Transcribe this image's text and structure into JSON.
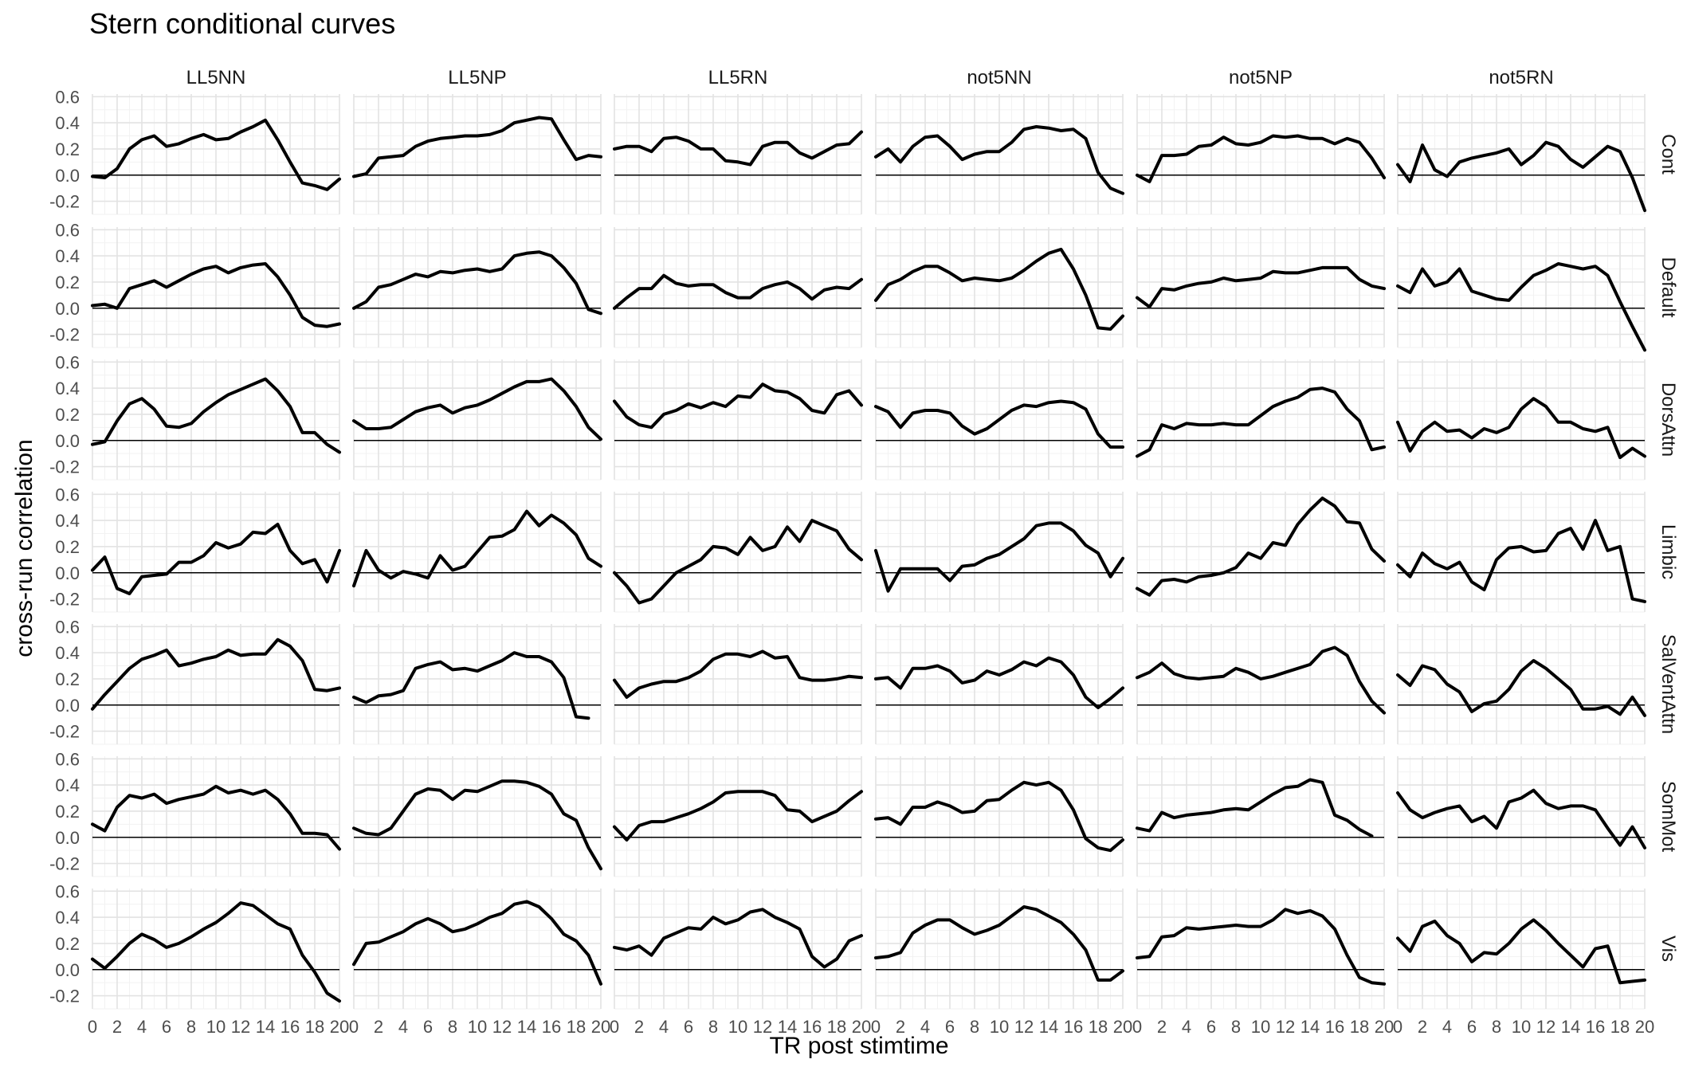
{
  "chart_data": {
    "type": "line",
    "title": "Stern conditional curves",
    "xlabel": "TR post stimtime",
    "ylabel": "cross-run correlation",
    "xlim": [
      0,
      20
    ],
    "ylim": [
      -0.3,
      0.62
    ],
    "x_ticks": [
      0,
      2,
      4,
      6,
      8,
      10,
      12,
      14,
      16,
      18,
      20
    ],
    "x_tick_labels": [
      "0",
      "2",
      "4",
      "6",
      "8",
      "10",
      "12",
      "14",
      "16",
      "18",
      "20"
    ],
    "y_ticks": [
      -0.2,
      0.0,
      0.2,
      0.4,
      0.6
    ],
    "y_tick_labels": [
      "-0.2",
      "0.0",
      "0.2",
      "0.4",
      "0.6"
    ],
    "grid": true,
    "reference_line_y": 0,
    "x": [
      0,
      1,
      2,
      3,
      4,
      5,
      6,
      7,
      8,
      9,
      10,
      11,
      12,
      13,
      14,
      15,
      16,
      17,
      18,
      19,
      20
    ],
    "columns": [
      "LL5NN",
      "LL5NP",
      "LL5RN",
      "not5NN",
      "not5NP",
      "not5RN"
    ],
    "rows": [
      "Cont",
      "Default",
      "DorsAttn",
      "Limbic",
      "SalVentAttn",
      "SomMot",
      "Vis"
    ],
    "panels": {
      "Cont": {
        "LL5NN": [
          -0.01,
          -0.02,
          0.05,
          0.2,
          0.27,
          0.3,
          0.22,
          0.24,
          0.28,
          0.31,
          0.27,
          0.28,
          0.33,
          0.37,
          0.42,
          0.27,
          0.1,
          -0.06,
          -0.08,
          -0.11,
          -0.03
        ],
        "LL5NP": [
          -0.01,
          0.01,
          0.13,
          0.14,
          0.15,
          0.22,
          0.26,
          0.28,
          0.29,
          0.3,
          0.3,
          0.31,
          0.34,
          0.4,
          0.42,
          0.44,
          0.43,
          0.27,
          0.12,
          0.15,
          0.14
        ],
        "LL5RN": [
          0.2,
          0.22,
          0.22,
          0.18,
          0.28,
          0.29,
          0.26,
          0.2,
          0.2,
          0.11,
          0.1,
          0.08,
          0.22,
          0.25,
          0.25,
          0.17,
          0.13,
          0.18,
          0.23,
          0.24,
          0.33
        ],
        "not5NN": [
          0.14,
          0.2,
          0.1,
          0.22,
          0.29,
          0.3,
          0.22,
          0.12,
          0.16,
          0.18,
          0.18,
          0.25,
          0.35,
          0.37,
          0.36,
          0.34,
          0.35,
          0.28,
          0.02,
          -0.1,
          -0.14
        ],
        "not5NP": [
          0.0,
          -0.05,
          0.15,
          0.15,
          0.16,
          0.22,
          0.23,
          0.29,
          0.24,
          0.23,
          0.25,
          0.3,
          0.29,
          0.3,
          0.28,
          0.28,
          0.24,
          0.28,
          0.25,
          0.13,
          -0.02
        ],
        "not5RN": [
          0.08,
          -0.05,
          0.23,
          0.04,
          -0.01,
          0.1,
          0.13,
          0.15,
          0.17,
          0.2,
          0.08,
          0.15,
          0.25,
          0.22,
          0.12,
          0.06,
          0.14,
          0.22,
          0.18,
          -0.02,
          -0.27
        ]
      },
      "Default": {
        "LL5NN": [
          0.02,
          0.03,
          0.0,
          0.15,
          0.18,
          0.21,
          0.16,
          0.21,
          0.26,
          0.3,
          0.32,
          0.27,
          0.31,
          0.33,
          0.34,
          0.24,
          0.1,
          -0.07,
          -0.13,
          -0.14,
          -0.12
        ],
        "LL5NP": [
          0.0,
          0.05,
          0.16,
          0.18,
          0.22,
          0.26,
          0.24,
          0.28,
          0.27,
          0.29,
          0.3,
          0.28,
          0.3,
          0.4,
          0.42,
          0.43,
          0.4,
          0.31,
          0.19,
          -0.01,
          -0.04
        ],
        "LL5RN": [
          0.0,
          0.08,
          0.15,
          0.15,
          0.25,
          0.19,
          0.17,
          0.18,
          0.18,
          0.12,
          0.08,
          0.08,
          0.15,
          0.18,
          0.2,
          0.15,
          0.07,
          0.14,
          0.16,
          0.15,
          0.22
        ],
        "not5NN": [
          0.06,
          0.18,
          0.22,
          0.28,
          0.32,
          0.32,
          0.27,
          0.21,
          0.23,
          0.22,
          0.21,
          0.23,
          0.29,
          0.36,
          0.42,
          0.45,
          0.3,
          0.1,
          -0.15,
          -0.16,
          -0.06
        ],
        "not5NP": [
          0.08,
          0.01,
          0.15,
          0.14,
          0.17,
          0.19,
          0.2,
          0.23,
          0.21,
          0.22,
          0.23,
          0.28,
          0.27,
          0.27,
          0.29,
          0.31,
          0.31,
          0.31,
          0.22,
          0.17,
          0.15
        ],
        "not5RN": [
          0.17,
          0.12,
          0.3,
          0.17,
          0.2,
          0.3,
          0.13,
          0.1,
          0.07,
          0.06,
          0.16,
          0.25,
          0.29,
          0.34,
          0.32,
          0.3,
          0.32,
          0.25,
          0.05,
          -0.14,
          -0.32
        ]
      },
      "DorsAttn": {
        "LL5NN": [
          -0.03,
          -0.01,
          0.15,
          0.28,
          0.32,
          0.24,
          0.11,
          0.1,
          0.13,
          0.22,
          0.29,
          0.35,
          0.39,
          0.43,
          0.47,
          0.38,
          0.26,
          0.06,
          0.06,
          -0.03,
          -0.09
        ],
        "LL5NP": [
          0.15,
          0.09,
          0.09,
          0.1,
          0.16,
          0.22,
          0.25,
          0.27,
          0.21,
          0.25,
          0.27,
          0.31,
          0.36,
          0.41,
          0.45,
          0.45,
          0.47,
          0.38,
          0.26,
          0.1,
          0.01
        ],
        "LL5RN": [
          0.3,
          0.18,
          0.12,
          0.1,
          0.2,
          0.23,
          0.28,
          0.25,
          0.29,
          0.26,
          0.34,
          0.33,
          0.43,
          0.38,
          0.37,
          0.32,
          0.23,
          0.21,
          0.35,
          0.38,
          0.27
        ],
        "not5NN": [
          0.26,
          0.22,
          0.1,
          0.21,
          0.23,
          0.23,
          0.21,
          0.11,
          0.05,
          0.09,
          0.16,
          0.23,
          0.27,
          0.26,
          0.29,
          0.3,
          0.29,
          0.24,
          0.05,
          -0.05,
          -0.05
        ],
        "not5NP": [
          -0.12,
          -0.07,
          0.12,
          0.09,
          0.13,
          0.12,
          0.12,
          0.13,
          0.12,
          0.12,
          0.19,
          0.26,
          0.3,
          0.33,
          0.39,
          0.4,
          0.37,
          0.24,
          0.15,
          -0.07,
          -0.05
        ],
        "not5RN": [
          0.14,
          -0.08,
          0.07,
          0.14,
          0.07,
          0.08,
          0.02,
          0.09,
          0.06,
          0.1,
          0.24,
          0.32,
          0.26,
          0.14,
          0.14,
          0.09,
          0.07,
          0.1,
          -0.13,
          -0.06,
          -0.12
        ]
      },
      "Limbic": {
        "LL5NN": [
          0.02,
          0.12,
          -0.12,
          -0.16,
          -0.03,
          -0.02,
          -0.01,
          0.08,
          0.08,
          0.13,
          0.23,
          0.19,
          0.22,
          0.31,
          0.3,
          0.37,
          0.17,
          0.07,
          0.1,
          -0.07,
          0.17
        ],
        "LL5NP": [
          -0.1,
          0.17,
          0.02,
          -0.04,
          0.01,
          -0.01,
          -0.04,
          0.13,
          0.02,
          0.05,
          0.16,
          0.27,
          0.28,
          0.33,
          0.47,
          0.36,
          0.44,
          0.38,
          0.29,
          0.11,
          0.05
        ],
        "LL5RN": [
          0.0,
          -0.1,
          -0.23,
          -0.2,
          -0.1,
          0.0,
          0.05,
          0.1,
          0.2,
          0.19,
          0.14,
          0.27,
          0.17,
          0.2,
          0.35,
          0.24,
          0.4,
          0.36,
          0.32,
          0.18,
          0.1
        ],
        "not5NN": [
          0.17,
          -0.14,
          0.03,
          0.03,
          0.03,
          0.03,
          -0.06,
          0.05,
          0.06,
          0.11,
          0.14,
          0.2,
          0.26,
          0.36,
          0.38,
          0.38,
          0.32,
          0.21,
          0.15,
          -0.03,
          0.11
        ],
        "not5NP": [
          -0.12,
          -0.17,
          -0.06,
          -0.05,
          -0.07,
          -0.03,
          -0.02,
          0.0,
          0.04,
          0.15,
          0.11,
          0.23,
          0.21,
          0.37,
          0.48,
          0.57,
          0.51,
          0.39,
          0.38,
          0.18,
          0.09
        ],
        "not5RN": [
          0.06,
          -0.03,
          0.15,
          0.07,
          0.03,
          0.08,
          -0.07,
          -0.13,
          0.1,
          0.19,
          0.2,
          0.16,
          0.17,
          0.3,
          0.34,
          0.18,
          0.4,
          0.17,
          0.2,
          -0.2,
          -0.22
        ]
      },
      "SalVentAttn": {
        "LL5NN": [
          -0.03,
          0.08,
          0.18,
          0.28,
          0.35,
          0.38,
          0.42,
          0.3,
          0.32,
          0.35,
          0.37,
          0.42,
          0.38,
          0.39,
          0.39,
          0.5,
          0.45,
          0.34,
          0.12,
          0.11,
          0.13
        ],
        "LL5NP": [
          0.06,
          0.02,
          0.07,
          0.08,
          0.11,
          0.28,
          0.31,
          0.33,
          0.27,
          0.28,
          0.26,
          0.3,
          0.34,
          0.4,
          0.37,
          0.37,
          0.33,
          0.21,
          -0.09,
          -0.1,
          null
        ],
        "LL5RN": [
          0.19,
          0.06,
          0.13,
          0.16,
          0.18,
          0.18,
          0.21,
          0.26,
          0.35,
          0.39,
          0.39,
          0.37,
          0.41,
          0.36,
          0.37,
          0.21,
          0.19,
          0.19,
          0.2,
          0.22,
          0.21
        ],
        "not5NN": [
          0.2,
          0.21,
          0.13,
          0.28,
          0.28,
          0.3,
          0.26,
          0.17,
          0.19,
          0.26,
          0.23,
          0.27,
          0.33,
          0.3,
          0.36,
          0.33,
          0.23,
          0.06,
          -0.02,
          0.05,
          0.13
        ],
        "not5NP": [
          0.21,
          0.25,
          0.32,
          0.24,
          0.21,
          0.2,
          0.21,
          0.22,
          0.28,
          0.25,
          0.2,
          0.22,
          0.25,
          0.28,
          0.31,
          0.41,
          0.44,
          0.38,
          0.18,
          0.03,
          -0.06
        ],
        "not5RN": [
          0.23,
          0.15,
          0.3,
          0.27,
          0.16,
          0.1,
          -0.05,
          0.01,
          0.03,
          0.12,
          0.26,
          0.34,
          0.28,
          0.2,
          0.12,
          -0.03,
          -0.03,
          -0.01,
          -0.07,
          0.06,
          -0.08
        ]
      },
      "SomMot": {
        "LL5NN": [
          0.1,
          0.05,
          0.23,
          0.32,
          0.3,
          0.33,
          0.26,
          0.29,
          0.31,
          0.33,
          0.39,
          0.34,
          0.36,
          0.33,
          0.36,
          0.29,
          0.18,
          0.03,
          0.03,
          0.02,
          -0.09
        ],
        "LL5NP": [
          0.07,
          0.03,
          0.02,
          0.07,
          0.2,
          0.33,
          0.37,
          0.36,
          0.29,
          0.36,
          0.35,
          0.39,
          0.43,
          0.43,
          0.42,
          0.39,
          0.33,
          0.18,
          0.13,
          -0.08,
          -0.24
        ],
        "LL5RN": [
          0.08,
          -0.02,
          0.09,
          0.12,
          0.12,
          0.15,
          0.18,
          0.22,
          0.27,
          0.34,
          0.35,
          0.35,
          0.35,
          0.32,
          0.21,
          0.2,
          0.12,
          0.16,
          0.2,
          0.28,
          0.35
        ],
        "not5NN": [
          0.14,
          0.15,
          0.1,
          0.23,
          0.23,
          0.27,
          0.24,
          0.19,
          0.2,
          0.28,
          0.29,
          0.36,
          0.42,
          0.4,
          0.42,
          0.36,
          0.21,
          -0.01,
          -0.08,
          -0.1,
          -0.02
        ],
        "not5NP": [
          0.07,
          0.05,
          0.19,
          0.15,
          0.17,
          0.18,
          0.19,
          0.21,
          0.22,
          0.21,
          0.27,
          0.33,
          0.38,
          0.39,
          0.44,
          0.42,
          0.17,
          0.13,
          0.06,
          0.01,
          null
        ],
        "not5RN": [
          0.34,
          0.21,
          0.15,
          0.19,
          0.22,
          0.24,
          0.12,
          0.16,
          0.07,
          0.27,
          0.3,
          0.36,
          0.26,
          0.22,
          0.24,
          0.24,
          0.21,
          0.07,
          -0.06,
          0.08,
          -0.08
        ]
      },
      "Vis": {
        "LL5NN": [
          0.08,
          0.01,
          0.1,
          0.2,
          0.27,
          0.23,
          0.17,
          0.2,
          0.25,
          0.31,
          0.36,
          0.43,
          0.51,
          0.49,
          0.42,
          0.35,
          0.31,
          0.11,
          -0.02,
          -0.18,
          -0.24
        ],
        "LL5NP": [
          0.04,
          0.2,
          0.21,
          0.25,
          0.29,
          0.35,
          0.39,
          0.35,
          0.29,
          0.31,
          0.35,
          0.4,
          0.43,
          0.5,
          0.52,
          0.48,
          0.39,
          0.27,
          0.22,
          0.11,
          -0.11
        ],
        "LL5RN": [
          0.17,
          0.15,
          0.18,
          0.11,
          0.24,
          0.28,
          0.32,
          0.31,
          0.4,
          0.35,
          0.38,
          0.44,
          0.46,
          0.4,
          0.36,
          0.31,
          0.1,
          0.02,
          0.08,
          0.22,
          0.26
        ],
        "not5NN": [
          0.09,
          0.1,
          0.13,
          0.28,
          0.34,
          0.38,
          0.38,
          0.32,
          0.27,
          0.3,
          0.34,
          0.41,
          0.48,
          0.46,
          0.41,
          0.36,
          0.27,
          0.15,
          -0.08,
          -0.08,
          -0.01
        ],
        "not5NP": [
          0.09,
          0.1,
          0.25,
          0.26,
          0.32,
          0.31,
          0.32,
          0.33,
          0.34,
          0.33,
          0.33,
          0.38,
          0.46,
          0.43,
          0.45,
          0.41,
          0.31,
          0.11,
          -0.06,
          -0.1,
          -0.11
        ],
        "not5RN": [
          0.24,
          0.14,
          0.33,
          0.37,
          0.26,
          0.2,
          0.06,
          0.13,
          0.12,
          0.2,
          0.31,
          0.38,
          0.3,
          0.2,
          0.11,
          0.02,
          0.16,
          0.18,
          -0.1,
          -0.09,
          -0.08
        ]
      }
    }
  }
}
